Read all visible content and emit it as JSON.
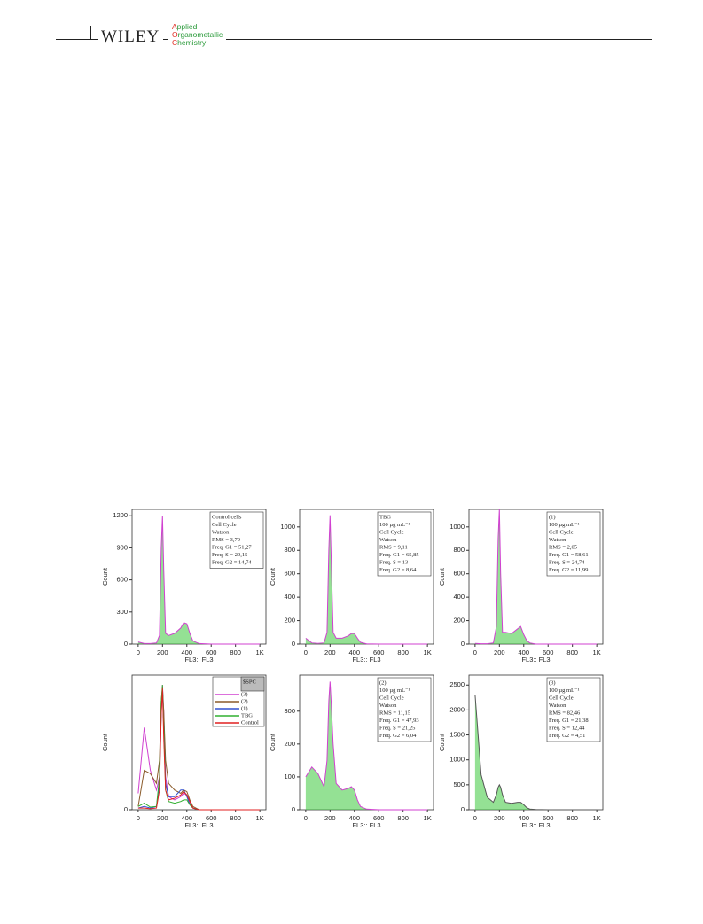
{
  "header": {
    "publisher": "WILEY",
    "journal": [
      "Applied",
      "Organometallic",
      "Chemistry"
    ]
  },
  "chart_data": [
    {
      "type": "line",
      "x_label": "FL3:: FL3",
      "y_label": "Count",
      "xlim": [
        -50,
        1050
      ],
      "ylim": [
        0,
        1260
      ],
      "xticks": [
        0,
        200,
        400,
        600,
        800,
        {
          "value": 1000,
          "label": "1K"
        }
      ],
      "yticks": [
        0,
        300,
        600,
        900,
        1200
      ],
      "x": [
        0,
        50,
        100,
        150,
        175,
        190,
        200,
        210,
        225,
        250,
        300,
        350,
        375,
        400,
        425,
        450,
        500,
        600,
        800,
        1000
      ],
      "fill_color": "#3cc83c",
      "series": [
        {
          "color": "#d040d0",
          "values": [
            20,
            5,
            5,
            10,
            80,
            900,
            1200,
            700,
            100,
            80,
            100,
            150,
            200,
            190,
            100,
            30,
            5,
            0,
            0,
            0
          ]
        }
      ],
      "annotation": [
        "Control cells",
        "Cell Cycle",
        "Watson",
        "RMS  = 3,79",
        "Freq. G1  = 51,27",
        "Freq. S = 29,15",
        "Freq. G2  = 14,74"
      ]
    },
    {
      "type": "line",
      "x_label": "FL3:: FL3",
      "y_label": "Count",
      "xlim": [
        -50,
        1050
      ],
      "ylim": [
        0,
        1150
      ],
      "xticks": [
        0,
        200,
        400,
        600,
        800,
        {
          "value": 1000,
          "label": "1K"
        }
      ],
      "yticks": [
        0,
        200,
        400,
        600,
        800,
        1000
      ],
      "x": [
        0,
        50,
        100,
        150,
        175,
        190,
        200,
        210,
        225,
        250,
        300,
        350,
        375,
        400,
        425,
        450,
        500,
        600,
        800,
        1000
      ],
      "fill_color": "#3cc83c",
      "series": [
        {
          "color": "#d040d0",
          "values": [
            50,
            10,
            5,
            10,
            100,
            800,
            1100,
            700,
            100,
            50,
            50,
            70,
            90,
            90,
            50,
            15,
            2,
            0,
            0,
            0
          ]
        }
      ],
      "annotation": [
        "TBG",
        "100 µg mL⁻¹",
        "Cell Cycle",
        "Watson",
        "RMS  = 9,11",
        "Freq. G1  = 65,85",
        "Freq. S = 13",
        "Freq. G2  = 8,64"
      ]
    },
    {
      "type": "line",
      "x_label": "FL3:: FL3",
      "y_label": "Count",
      "xlim": [
        -50,
        1050
      ],
      "ylim": [
        0,
        1150
      ],
      "xticks": [
        0,
        200,
        400,
        600,
        800,
        {
          "value": 1000,
          "label": "1K"
        }
      ],
      "yticks": [
        0,
        200,
        400,
        600,
        800,
        1000
      ],
      "x": [
        0,
        50,
        100,
        150,
        175,
        190,
        200,
        210,
        225,
        250,
        300,
        350,
        375,
        400,
        425,
        450,
        500,
        600,
        800,
        1000
      ],
      "fill_color": "#3cc83c",
      "series": [
        {
          "color": "#d040d0",
          "values": [
            5,
            3,
            3,
            10,
            150,
            900,
            1150,
            600,
            100,
            100,
            90,
            130,
            150,
            80,
            30,
            10,
            0,
            0,
            0,
            0
          ]
        }
      ],
      "annotation": [
        "(1)",
        "100 µg mL⁻¹",
        "Cell Cycle",
        "Watson",
        "RMS  = 2,05",
        "Freq. G1  = 58,61",
        "Freq. S = 24,74",
        "Freq. G2  = 11,99"
      ]
    },
    {
      "type": "line",
      "x_label": "FL3:: FL3",
      "y_label": "Count",
      "xlim": [
        -50,
        1050
      ],
      "ylim": [
        0,
        410
      ],
      "xticks": [
        0,
        200,
        400,
        600,
        800,
        {
          "value": 1000,
          "label": "1K"
        }
      ],
      "yticks": [
        0
      ],
      "x": [
        0,
        50,
        100,
        150,
        175,
        190,
        200,
        210,
        225,
        250,
        300,
        350,
        375,
        400,
        425,
        450,
        500,
        600,
        800,
        1000
      ],
      "legend_title": "$SPC",
      "legend": "upper right",
      "series": [
        {
          "name": "(3)",
          "color": "#d040d0",
          "values": [
            50,
            250,
            120,
            60,
            100,
            300,
            380,
            300,
            100,
            40,
            30,
            40,
            50,
            45,
            20,
            5,
            0,
            0,
            0,
            0
          ]
        },
        {
          "name": "(2)",
          "color": "#8a5a2a",
          "values": [
            10,
            120,
            110,
            80,
            150,
            330,
            370,
            300,
            150,
            80,
            60,
            50,
            60,
            55,
            30,
            10,
            0,
            0,
            0,
            0
          ]
        },
        {
          "name": "(1)",
          "color": "#3050d0",
          "values": [
            5,
            10,
            5,
            10,
            80,
            300,
            370,
            250,
            80,
            40,
            40,
            60,
            60,
            40,
            15,
            5,
            0,
            0,
            0,
            0
          ]
        },
        {
          "name": "TBG",
          "color": "#30b030",
          "values": [
            10,
            20,
            8,
            10,
            100,
            330,
            380,
            260,
            60,
            25,
            20,
            25,
            30,
            30,
            15,
            5,
            0,
            0,
            0,
            0
          ]
        },
        {
          "name": "Control",
          "color": "#e02020",
          "values": [
            5,
            5,
            3,
            5,
            60,
            290,
            370,
            220,
            60,
            30,
            35,
            45,
            55,
            45,
            25,
            5,
            0,
            0,
            0,
            0
          ]
        }
      ]
    },
    {
      "type": "line",
      "x_label": "FL3:: FL3",
      "y_label": "Count",
      "xlim": [
        -50,
        1050
      ],
      "ylim": [
        0,
        410
      ],
      "xticks": [
        0,
        200,
        400,
        600,
        800,
        {
          "value": 1000,
          "label": "1K"
        }
      ],
      "yticks": [
        0,
        100,
        200,
        300
      ],
      "x": [
        0,
        50,
        100,
        150,
        175,
        190,
        200,
        210,
        225,
        250,
        300,
        350,
        375,
        400,
        425,
        450,
        500,
        600,
        800,
        1000
      ],
      "fill_color": "#3cc83c",
      "series": [
        {
          "color": "#d040d0",
          "values": [
            100,
            130,
            110,
            70,
            150,
            330,
            390,
            320,
            200,
            80,
            60,
            65,
            70,
            60,
            30,
            10,
            2,
            0,
            0,
            0
          ]
        }
      ],
      "annotation": [
        "(2)",
        "100 µg mL⁻¹",
        "Cell Cycle",
        "Watson",
        "RMS  = 11,15",
        "Freq. G1  = 47,93",
        "Freq. S = 21,25",
        "Freq. G2  = 6,04"
      ]
    },
    {
      "type": "line",
      "x_label": "FL3:: FL3",
      "y_label": "Count",
      "xlim": [
        -50,
        1050
      ],
      "ylim": [
        0,
        2700
      ],
      "xticks": [
        0,
        200,
        400,
        600,
        800,
        {
          "value": 1000,
          "label": "1K"
        }
      ],
      "yticks": [
        0,
        500,
        1000,
        1500,
        2000,
        2500
      ],
      "x": [
        0,
        50,
        100,
        150,
        175,
        190,
        200,
        210,
        225,
        250,
        300,
        350,
        375,
        400,
        425,
        450,
        500,
        600,
        800,
        1000
      ],
      "fill_color": "#3cc83c",
      "series": [
        {
          "color": "#555555",
          "values": [
            2300,
            700,
            250,
            150,
            300,
            450,
            500,
            450,
            300,
            150,
            130,
            150,
            150,
            100,
            40,
            15,
            5,
            0,
            0,
            0
          ]
        }
      ],
      "annotation": [
        "(3)",
        "100 µg mL⁻¹",
        "Cell Cycle",
        "Watson",
        "RMS  = 82,46",
        "Freq. G1  = 21,38",
        "Freq. S = 12,44",
        "Freq. G2  = 4,51"
      ]
    }
  ]
}
